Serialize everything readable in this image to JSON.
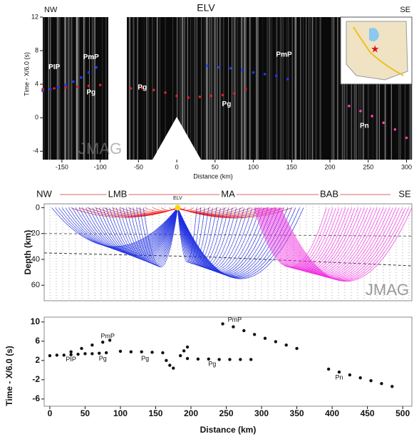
{
  "chart_data": [
    {
      "type": "record-section",
      "title": "ELV",
      "left_label": "NW",
      "right_label": "SE",
      "x_label": "Distance (km)",
      "y_label": "Time - X/6.0 (s)",
      "watermark": "JMAG",
      "xlim": [
        -175,
        307
      ],
      "ylim": [
        -5,
        12
      ],
      "xticks": [
        -150,
        -100,
        -50,
        0,
        50,
        100,
        150,
        200,
        250,
        300
      ],
      "yticks": [
        12,
        8,
        4,
        0,
        -4
      ],
      "series": [
        {
          "color": "#1a3cff",
          "x": [
            -175,
            -165,
            -155,
            -145,
            -135,
            -125,
            -115,
            -105
          ],
          "values": [
            3.2,
            3.4,
            3.6,
            3.9,
            4.3,
            4.8,
            5.4,
            6.0
          ]
        },
        {
          "color": "#e02020",
          "x": [
            -175,
            -160,
            -145,
            -130,
            -115,
            -100
          ],
          "values": [
            3.4,
            3.5,
            3.6,
            3.7,
            3.8,
            3.9
          ]
        },
        {
          "color": "#e02020",
          "x": [
            -60,
            -45,
            -30,
            -15,
            0,
            15,
            30,
            45,
            60,
            75,
            90
          ],
          "values": [
            3.5,
            3.5,
            3.3,
            3.0,
            2.6,
            2.4,
            2.5,
            2.6,
            2.7,
            2.9,
            3.4
          ]
        },
        {
          "color": "#1a3cff",
          "x": [
            40,
            55,
            70,
            85,
            100,
            115,
            130,
            145
          ],
          "values": [
            6.2,
            6.0,
            5.9,
            5.7,
            5.4,
            5.2,
            5.0,
            4.6
          ]
        },
        {
          "color": "#ff3fb0",
          "x": [
            225,
            240,
            255,
            270,
            285,
            300
          ],
          "values": [
            1.4,
            0.8,
            0.2,
            -0.6,
            -1.4,
            -2.4
          ]
        }
      ],
      "annotations": [
        {
          "text": "PIP",
          "x": -160,
          "y": 6
        },
        {
          "text": "PmP",
          "x": -112,
          "y": 7.2
        },
        {
          "text": "Pg",
          "x": -112,
          "y": 3
        },
        {
          "text": "Pg",
          "x": -45,
          "y": 3.6
        },
        {
          "text": "Pg",
          "x": 65,
          "y": 1.6
        },
        {
          "text": "PmP",
          "x": 140,
          "y": 7.5
        },
        {
          "text": "Pn",
          "x": 245,
          "y": -1
        }
      ]
    },
    {
      "type": "ray-diagram",
      "y_label": "Depth (km)",
      "watermark": "JMAG",
      "region_labels": [
        "NW",
        "LMB",
        "MA",
        "BAB",
        "SE"
      ],
      "source_label": "ELV",
      "source_x": 0,
      "xlim": [
        -175,
        307
      ],
      "ylim": [
        72,
        -3
      ],
      "yticks": [
        0,
        20,
        40,
        60
      ],
      "ray_groups": [
        {
          "color": "#ee1c1c",
          "from": [
            0,
            0
          ],
          "to": [
            -140,
            150
          ],
          "depth": [
            1,
            8
          ]
        },
        {
          "color": "#1f2fe0",
          "from": [
            0,
            0
          ],
          "to": [
            -165,
            -45
          ],
          "depth": [
            30,
            46
          ]
        },
        {
          "color": "#1f2fe0",
          "from": [
            0,
            0
          ],
          "to": [
            25,
            165
          ],
          "depth": [
            42,
            55
          ]
        },
        {
          "color": "#f030e0",
          "from": [
            100,
            135
          ],
          "to": [
            195,
            307
          ],
          "depth": [
            46,
            57
          ]
        }
      ]
    },
    {
      "type": "scatter",
      "x_label": "Distance (km)",
      "y_label": "Time - X/6.0 (s)",
      "xlim": [
        -8,
        513
      ],
      "ylim": [
        -7.5,
        11
      ],
      "xticks": [
        0,
        50,
        100,
        150,
        200,
        250,
        300,
        350,
        400,
        450,
        500
      ],
      "yticks": [
        10,
        6,
        2,
        -2,
        -6
      ],
      "series": [
        {
          "color": "#111111",
          "x": [
            0,
            10,
            20,
            30,
            40,
            50,
            60,
            70,
            80
          ],
          "values": [
            3.0,
            3.1,
            3.1,
            3.2,
            3.3,
            3.4,
            3.4,
            3.5,
            3.6
          ]
        },
        {
          "color": "#111111",
          "x": [
            30,
            45,
            60,
            75,
            85
          ],
          "values": [
            3.8,
            4.5,
            5.2,
            5.8,
            6.2
          ]
        },
        {
          "color": "#111111",
          "x": [
            100,
            115,
            130,
            145,
            160
          ],
          "values": [
            3.9,
            3.8,
            3.8,
            3.7,
            3.6
          ]
        },
        {
          "color": "#111111",
          "x": [
            165,
            170,
            175
          ],
          "values": [
            2.0,
            1.0,
            0.4
          ]
        },
        {
          "color": "#111111",
          "x": [
            185,
            190,
            195
          ],
          "values": [
            3.0,
            4.0,
            4.8
          ]
        },
        {
          "color": "#111111",
          "x": [
            195,
            210,
            225,
            240,
            255,
            270,
            285
          ],
          "values": [
            2.4,
            2.3,
            2.3,
            2.2,
            2.2,
            2.2,
            2.2
          ]
        },
        {
          "color": "#111111",
          "x": [
            245,
            260,
            275,
            290,
            305,
            320,
            335,
            350
          ],
          "values": [
            9.6,
            9.0,
            8.2,
            7.4,
            6.6,
            5.9,
            5.2,
            4.5
          ]
        },
        {
          "color": "#111111",
          "x": [
            395,
            410,
            425,
            440,
            455,
            470,
            485
          ],
          "values": [
            0.2,
            -0.4,
            -1.0,
            -1.6,
            -2.2,
            -2.8,
            -3.4
          ]
        }
      ],
      "annotations": [
        {
          "text": "PmP",
          "x": 82,
          "y": 7
        },
        {
          "text": "PIP",
          "x": 30,
          "y": 2.2
        },
        {
          "text": "Pg",
          "x": 75,
          "y": 2.3
        },
        {
          "text": "Pg",
          "x": 135,
          "y": 2.3
        },
        {
          "text": "Pg",
          "x": 230,
          "y": 1.2
        },
        {
          "text": "PmP",
          "x": 262,
          "y": 10.4
        },
        {
          "text": "Pn",
          "x": 410,
          "y": -1.6
        }
      ]
    }
  ]
}
